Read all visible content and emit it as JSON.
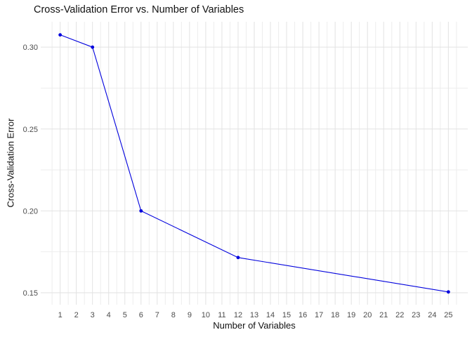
{
  "chart_data": {
    "type": "line",
    "title": "Cross-Validation Error vs. Number of Variables",
    "xlabel": "Number of Variables",
    "ylabel": "Cross-Validation Error",
    "x": [
      1,
      3,
      6,
      12,
      25
    ],
    "y": [
      0.3075,
      0.3,
      0.2,
      0.1715,
      0.1505
    ],
    "x_ticks": [
      1,
      2,
      3,
      4,
      5,
      6,
      7,
      8,
      9,
      10,
      11,
      12,
      13,
      14,
      15,
      16,
      17,
      18,
      19,
      20,
      21,
      22,
      23,
      24,
      25
    ],
    "y_ticks": [
      0.15,
      0.2,
      0.25,
      0.3
    ],
    "y_tick_labels": [
      "0.15",
      "0.20",
      "0.25",
      "0.30"
    ],
    "xlim": [
      -0.2,
      26.2
    ],
    "ylim": [
      0.1427,
      0.3155
    ],
    "grid": true,
    "minor_grid": true,
    "legend_position": "none",
    "colors": {
      "line": "#0000DD",
      "point": "#0000DD",
      "grid_major": "#E2E2E2",
      "grid_minor": "#EDEDED",
      "tick_label": "#4D4D4D",
      "text": "#111111",
      "background": "#FFFFFF"
    }
  }
}
